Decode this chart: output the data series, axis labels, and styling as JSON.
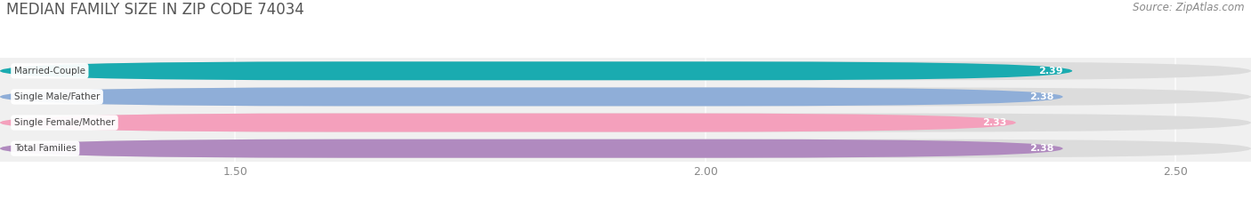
{
  "title": "MEDIAN FAMILY SIZE IN ZIP CODE 74034",
  "source": "Source: ZipAtlas.com",
  "categories": [
    "Married-Couple",
    "Single Male/Father",
    "Single Female/Mother",
    "Total Families"
  ],
  "values": [
    2.39,
    2.38,
    2.33,
    2.38
  ],
  "bar_colors": [
    "#1aabb0",
    "#8faed8",
    "#f4a0bc",
    "#b08abf"
  ],
  "bar_bg_color": "#e8e8e8",
  "xlim_data_min": 1.25,
  "xlim_data_max": 2.58,
  "xticks": [
    1.5,
    2.0,
    2.5
  ],
  "xtick_labels": [
    "1.50",
    "2.00",
    "2.50"
  ],
  "value_label_color": "#ffffff",
  "label_text_color": "#444444",
  "background_color": "#ffffff",
  "plot_bg_color": "#f0f0f0",
  "title_fontsize": 12,
  "source_fontsize": 8.5,
  "bar_height": 0.72,
  "title_color": "#555555",
  "source_color": "#888888"
}
